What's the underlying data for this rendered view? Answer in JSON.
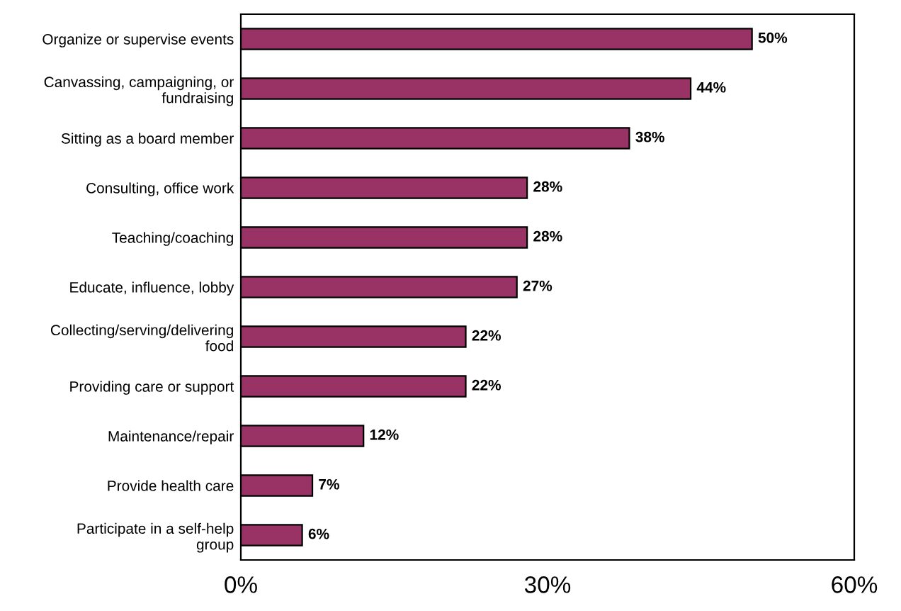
{
  "chart_data": {
    "type": "bar",
    "orientation": "horizontal",
    "categories": [
      "Organize or supervise events",
      "Canvassing, campaigning, or\nfundraising",
      "Sitting as a board member",
      "Consulting, office work",
      "Teaching/coaching",
      "Educate, influence, lobby",
      "Collecting/serving/delivering\nfood",
      "Providing care or support",
      "Maintenance/repair",
      "Provide health care",
      "Participate in a self-help\ngroup"
    ],
    "values": [
      50,
      44,
      38,
      28,
      28,
      27,
      22,
      22,
      12,
      7,
      6
    ],
    "value_labels": [
      "50%",
      "44%",
      "38%",
      "28%",
      "28%",
      "27%",
      "22%",
      "22%",
      "12%",
      "7%",
      "6%"
    ],
    "color": "#993366",
    "xlim": [
      0,
      60
    ],
    "xticks": [
      {
        "value": 0,
        "label": "0%"
      },
      {
        "value": 30,
        "label": "30%"
      },
      {
        "value": 60,
        "label": "60%"
      }
    ],
    "grid": false,
    "legend": false
  }
}
